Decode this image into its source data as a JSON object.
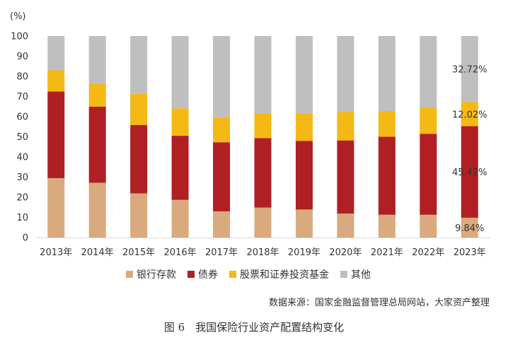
{
  "chart_data": {
    "type": "bar",
    "stacked": true,
    "unit_label": "(%)",
    "categories": [
      "2013年",
      "2014年",
      "2015年",
      "2016年",
      "2017年",
      "2018年",
      "2019年",
      "2020年",
      "2021年",
      "2022年",
      "2023年"
    ],
    "ylim": [
      0,
      100
    ],
    "yticks": [
      0,
      10,
      20,
      30,
      40,
      50,
      60,
      70,
      80,
      90,
      100
    ],
    "series": [
      {
        "name": "银行存款",
        "color": "#D9AA7E",
        "values": [
          29.5,
          27.2,
          21.9,
          18.7,
          13.0,
          14.9,
          13.9,
          11.9,
          11.3,
          11.3,
          9.84
        ]
      },
      {
        "name": "债券",
        "color": "#B01F24",
        "values": [
          43.0,
          37.8,
          34.0,
          31.8,
          34.3,
          34.4,
          34.1,
          36.3,
          38.7,
          40.2,
          45.42
        ]
      },
      {
        "name": "股票和证券投资基金",
        "color": "#F5B915",
        "values": [
          10.5,
          11.3,
          15.4,
          13.6,
          12.4,
          12.1,
          13.4,
          14.1,
          12.8,
          12.9,
          12.02
        ]
      },
      {
        "name": "其他",
        "color": "#BFBFBF",
        "values": [
          17.0,
          23.7,
          28.7,
          35.9,
          40.3,
          38.6,
          38.6,
          37.7,
          37.2,
          35.6,
          32.72
        ]
      }
    ],
    "data_labels": [
      {
        "category": "2023年",
        "series": "其他",
        "text": "32.72%"
      },
      {
        "category": "2023年",
        "series": "股票和证券投资基金",
        "text": "12.02%"
      },
      {
        "category": "2023年",
        "series": "债券",
        "text": "45.42%"
      },
      {
        "category": "2023年",
        "series": "银行存款",
        "text": "9.84%"
      }
    ]
  },
  "legend": {
    "items": [
      {
        "label": "银行存款",
        "color": "#D9AA7E"
      },
      {
        "label": "债券",
        "color": "#B01F24"
      },
      {
        "label": "股票和证券投资基金",
        "color": "#F5B915"
      },
      {
        "label": "其他",
        "color": "#BFBFBF"
      }
    ]
  },
  "source": "数据来源：国家金融监督管理总局网站，大家资产整理",
  "caption": "图 6　我国保险行业资产配置结构变化"
}
